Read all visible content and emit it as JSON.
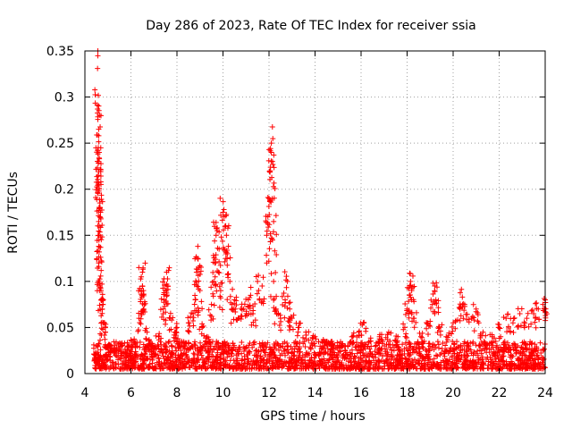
{
  "chart_data": {
    "type": "scatter",
    "title": "Day 286 of 2023, Rate Of TEC Index for receiver ssia",
    "xlabel": "GPS time / hours",
    "ylabel": "ROTI / TECUs",
    "xlim": [
      4,
      24
    ],
    "ylim": [
      0,
      0.35
    ],
    "xticks": [
      4,
      6,
      8,
      10,
      12,
      14,
      16,
      18,
      20,
      22,
      24
    ],
    "yticks": [
      0,
      0.05,
      0.1,
      0.15,
      0.2,
      0.25,
      0.3,
      0.35
    ],
    "xtick_labels": [
      "4",
      "6",
      "8",
      "10",
      "12",
      "14",
      "16",
      "18",
      "20",
      "22",
      "24"
    ],
    "ytick_labels": [
      "0",
      "0.05",
      "0.1",
      "0.15",
      "0.2",
      "0.25",
      "0.3",
      "0.35"
    ],
    "grid": true,
    "marker": "+",
    "series": [
      {
        "name": "ROTI",
        "color": "#ff0000",
        "points": [
          [
            4.55,
            0.331
          ],
          [
            4.55,
            0.287
          ],
          [
            4.6,
            0.265
          ],
          [
            4.6,
            0.258
          ],
          [
            4.58,
            0.245
          ],
          [
            4.62,
            0.24
          ],
          [
            4.58,
            0.23
          ],
          [
            4.6,
            0.219
          ],
          [
            4.58,
            0.215
          ],
          [
            4.65,
            0.185
          ],
          [
            4.68,
            0.175
          ],
          [
            4.65,
            0.17
          ],
          [
            4.62,
            0.16
          ],
          [
            4.6,
            0.138
          ],
          [
            4.62,
            0.132
          ],
          [
            4.6,
            0.12
          ],
          [
            4.65,
            0.098
          ],
          [
            4.7,
            0.09
          ],
          [
            4.7,
            0.08
          ],
          [
            4.75,
            0.07
          ],
          [
            4.8,
            0.055
          ],
          [
            4.78,
            0.048
          ],
          [
            4.5,
            0.03
          ],
          [
            4.5,
            0.02
          ],
          [
            4.6,
            0.015
          ],
          [
            5.0,
            0.03
          ],
          [
            5.3,
            0.025
          ],
          [
            5.6,
            0.03
          ],
          [
            5.9,
            0.02
          ],
          [
            6.1,
            0.035
          ],
          [
            6.35,
            0.06
          ],
          [
            6.45,
            0.105
          ],
          [
            6.5,
            0.11
          ],
          [
            6.5,
            0.095
          ],
          [
            6.48,
            0.085
          ],
          [
            6.55,
            0.07
          ],
          [
            6.7,
            0.045
          ],
          [
            6.9,
            0.03
          ],
          [
            7.2,
            0.04
          ],
          [
            7.4,
            0.065
          ],
          [
            7.45,
            0.08
          ],
          [
            7.5,
            0.09
          ],
          [
            7.55,
            0.11
          ],
          [
            7.6,
            0.095
          ],
          [
            7.7,
            0.06
          ],
          [
            7.9,
            0.045
          ],
          [
            8.0,
            0.05
          ],
          [
            8.2,
            0.035
          ],
          [
            8.5,
            0.055
          ],
          [
            8.7,
            0.065
          ],
          [
            8.8,
            0.08
          ],
          [
            8.85,
            0.11
          ],
          [
            8.9,
            0.125
          ],
          [
            8.95,
            0.115
          ],
          [
            9.0,
            0.09
          ],
          [
            9.1,
            0.05
          ],
          [
            9.3,
            0.04
          ],
          [
            9.5,
            0.075
          ],
          [
            9.6,
            0.1
          ],
          [
            9.65,
            0.12
          ],
          [
            9.7,
            0.15
          ],
          [
            9.75,
            0.155
          ],
          [
            9.8,
            0.11
          ],
          [
            9.9,
            0.09
          ],
          [
            10.0,
            0.175
          ],
          [
            10.05,
            0.17
          ],
          [
            10.1,
            0.16
          ],
          [
            10.15,
            0.15
          ],
          [
            10.2,
            0.13
          ],
          [
            10.3,
            0.1
          ],
          [
            10.4,
            0.07
          ],
          [
            10.5,
            0.08
          ],
          [
            10.7,
            0.06
          ],
          [
            10.9,
            0.07
          ],
          [
            11.1,
            0.08
          ],
          [
            11.2,
            0.085
          ],
          [
            11.3,
            0.065
          ],
          [
            11.5,
            0.1
          ],
          [
            11.7,
            0.095
          ],
          [
            11.9,
            0.15
          ],
          [
            11.95,
            0.17
          ],
          [
            12.0,
            0.19
          ],
          [
            12.05,
            0.22
          ],
          [
            12.1,
            0.24
          ],
          [
            12.1,
            0.25
          ],
          [
            12.15,
            0.23
          ],
          [
            12.2,
            0.165
          ],
          [
            12.2,
            0.1
          ],
          [
            12.3,
            0.07
          ],
          [
            12.5,
            0.06
          ],
          [
            12.7,
            0.08
          ],
          [
            12.8,
            0.1
          ],
          [
            12.9,
            0.07
          ],
          [
            13.0,
            0.06
          ],
          [
            13.3,
            0.05
          ],
          [
            13.6,
            0.045
          ],
          [
            14.0,
            0.04
          ],
          [
            14.4,
            0.035
          ],
          [
            14.8,
            0.03
          ],
          [
            15.2,
            0.03
          ],
          [
            15.6,
            0.04
          ],
          [
            15.9,
            0.045
          ],
          [
            16.1,
            0.055
          ],
          [
            16.4,
            0.035
          ],
          [
            16.8,
            0.04
          ],
          [
            17.2,
            0.045
          ],
          [
            17.6,
            0.04
          ],
          [
            17.9,
            0.05
          ],
          [
            18.0,
            0.07
          ],
          [
            18.1,
            0.085
          ],
          [
            18.15,
            0.1
          ],
          [
            18.2,
            0.09
          ],
          [
            18.3,
            0.06
          ],
          [
            18.6,
            0.04
          ],
          [
            18.9,
            0.055
          ],
          [
            19.1,
            0.075
          ],
          [
            19.2,
            0.095
          ],
          [
            19.25,
            0.08
          ],
          [
            19.4,
            0.05
          ],
          [
            19.7,
            0.04
          ],
          [
            20.0,
            0.055
          ],
          [
            20.3,
            0.07
          ],
          [
            20.4,
            0.083
          ],
          [
            20.5,
            0.075
          ],
          [
            20.8,
            0.06
          ],
          [
            21.0,
            0.07
          ],
          [
            21.3,
            0.045
          ],
          [
            21.7,
            0.04
          ],
          [
            22.0,
            0.05
          ],
          [
            22.3,
            0.06
          ],
          [
            22.6,
            0.055
          ],
          [
            22.9,
            0.065
          ],
          [
            23.2,
            0.06
          ],
          [
            23.5,
            0.065
          ],
          [
            23.7,
            0.07
          ],
          [
            23.9,
            0.075
          ],
          [
            24.0,
            0.08
          ]
        ],
        "baseline_band": {
          "description": "dense cloud of low ROTI values",
          "x_range": [
            4.4,
            24.0
          ],
          "y_range": [
            0.005,
            0.035
          ]
        }
      }
    ]
  }
}
